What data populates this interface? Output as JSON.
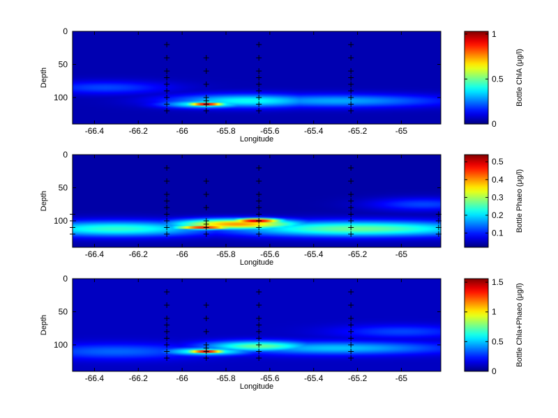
{
  "chart_data": [
    {
      "type": "heatmap",
      "xlabel": "Longitude",
      "ylabel": "Depth",
      "xlim": [
        -66.5,
        -64.82
      ],
      "ylim": [
        140,
        0
      ],
      "x_ticks": [
        -66.4,
        -66.2,
        -66,
        -65.8,
        -65.6,
        -65.4,
        -65.2,
        -65
      ],
      "x_tick_labels": [
        "-66.4",
        "-66.2",
        "-66",
        "-65.8",
        "-65.6",
        "-65.4",
        "-65.2",
        "-65"
      ],
      "y_ticks": [
        0,
        50,
        100
      ],
      "y_tick_labels": [
        "0",
        "50",
        "100"
      ],
      "colorbar": {
        "label": "Bottle ChlA (μg/l)",
        "range": [
          0,
          1.03
        ],
        "ticks": [
          0,
          0.5,
          1
        ],
        "tick_labels": [
          "0",
          "0.5",
          "1"
        ]
      },
      "background_value": 0.05,
      "features": [
        {
          "lon": -65.89,
          "depth": 110,
          "value": 1.0,
          "half_width_lon": 0.09,
          "half_width_depth": 3
        },
        {
          "lon": -65.89,
          "depth": 110,
          "value": 0.45,
          "half_width_lon": 0.2,
          "half_width_depth": 6
        },
        {
          "lon": -65.7,
          "depth": 105,
          "value": 0.4,
          "half_width_lon": 0.35,
          "half_width_depth": 10
        },
        {
          "lon": -65.3,
          "depth": 105,
          "value": 0.3,
          "half_width_lon": 0.5,
          "half_width_depth": 10
        },
        {
          "lon": -66.35,
          "depth": 85,
          "value": 0.2,
          "half_width_lon": 0.3,
          "half_width_depth": 10
        }
      ],
      "stations": [
        {
          "lon": -66.07,
          "depths": [
            20,
            40,
            60,
            70,
            80,
            90,
            100,
            110,
            120
          ]
        },
        {
          "lon": -65.89,
          "depths": [
            40,
            60,
            80,
            100,
            105,
            110,
            120
          ]
        },
        {
          "lon": -65.65,
          "depths": [
            20,
            40,
            60,
            70,
            80,
            90,
            100,
            110,
            120
          ]
        },
        {
          "lon": -65.23,
          "depths": [
            20,
            40,
            60,
            70,
            80,
            90,
            100,
            110,
            120
          ]
        }
      ]
    },
    {
      "type": "heatmap",
      "xlabel": "Longitude",
      "ylabel": "Depth",
      "xlim": [
        -66.5,
        -64.82
      ],
      "ylim": [
        140,
        0
      ],
      "x_ticks": [
        -66.4,
        -66.2,
        -66,
        -65.8,
        -65.6,
        -65.4,
        -65.2,
        -65
      ],
      "x_tick_labels": [
        "-66.4",
        "-66.2",
        "-66",
        "-65.8",
        "-65.6",
        "-65.4",
        "-65.2",
        "-65"
      ],
      "y_ticks": [
        0,
        50,
        100
      ],
      "y_tick_labels": [
        "0",
        "50",
        "100"
      ],
      "colorbar": {
        "label": "Bottle Phaeo (μg/l)",
        "range": [
          0.02,
          0.54
        ],
        "ticks": [
          0.1,
          0.2,
          0.3,
          0.4,
          0.5
        ],
        "tick_labels": [
          "0.1",
          "0.2",
          "0.3",
          "0.4",
          "0.5"
        ]
      },
      "background_value": 0.04,
      "features": [
        {
          "lon": -65.66,
          "depth": 100,
          "value": 0.52,
          "half_width_lon": 0.12,
          "half_width_depth": 4
        },
        {
          "lon": -65.9,
          "depth": 110,
          "value": 0.5,
          "half_width_lon": 0.14,
          "half_width_depth": 3
        },
        {
          "lon": -65.75,
          "depth": 105,
          "value": 0.4,
          "half_width_lon": 0.3,
          "half_width_depth": 8
        },
        {
          "lon": -65.2,
          "depth": 112,
          "value": 0.27,
          "half_width_lon": 0.6,
          "half_width_depth": 12
        },
        {
          "lon": -66.3,
          "depth": 112,
          "value": 0.24,
          "half_width_lon": 0.45,
          "half_width_depth": 12
        },
        {
          "lon": -64.9,
          "depth": 75,
          "value": 0.12,
          "half_width_lon": 0.25,
          "half_width_depth": 10
        }
      ],
      "stations": [
        {
          "lon": -66.07,
          "depths": [
            20,
            40,
            60,
            70,
            80,
            90,
            100,
            110,
            120
          ]
        },
        {
          "lon": -65.89,
          "depths": [
            40,
            60,
            80,
            100,
            105,
            110,
            120
          ]
        },
        {
          "lon": -65.65,
          "depths": [
            20,
            40,
            60,
            70,
            80,
            90,
            100,
            110,
            120
          ]
        },
        {
          "lon": -65.23,
          "depths": [
            20,
            40,
            60,
            70,
            80,
            90,
            100,
            110,
            120
          ]
        },
        {
          "lon": -64.83,
          "depths": [
            90,
            100,
            110,
            120
          ]
        },
        {
          "lon": -66.5,
          "depths": [
            90,
            100,
            110,
            120
          ]
        }
      ]
    },
    {
      "type": "heatmap",
      "xlabel": "Longitude",
      "ylabel": "Depth",
      "xlim": [
        -66.5,
        -64.82
      ],
      "ylim": [
        140,
        0
      ],
      "x_ticks": [
        -66.4,
        -66.2,
        -66,
        -65.8,
        -65.6,
        -65.4,
        -65.2,
        -65
      ],
      "x_tick_labels": [
        "-66.4",
        "-66.2",
        "-66",
        "-65.8",
        "-65.6",
        "-65.4",
        "-65.2",
        "-65"
      ],
      "y_ticks": [
        0,
        50,
        100
      ],
      "y_tick_labels": [
        "0",
        "50",
        "100"
      ],
      "colorbar": {
        "label": "Bottle Chla+Phaeo (μg/l)",
        "range": [
          0,
          1.56
        ],
        "ticks": [
          0,
          0.5,
          1,
          1.5
        ],
        "tick_labels": [
          "0",
          "0.5",
          "1",
          "1.5"
        ]
      },
      "background_value": 0.1,
      "features": [
        {
          "lon": -65.89,
          "depth": 110,
          "value": 1.5,
          "half_width_lon": 0.09,
          "half_width_depth": 3
        },
        {
          "lon": -65.89,
          "depth": 110,
          "value": 0.7,
          "half_width_lon": 0.2,
          "half_width_depth": 6
        },
        {
          "lon": -65.65,
          "depth": 102,
          "value": 0.75,
          "half_width_lon": 0.25,
          "half_width_depth": 8
        },
        {
          "lon": -65.3,
          "depth": 105,
          "value": 0.5,
          "half_width_lon": 0.5,
          "half_width_depth": 10
        },
        {
          "lon": -66.3,
          "depth": 110,
          "value": 0.35,
          "half_width_lon": 0.4,
          "half_width_depth": 12
        },
        {
          "lon": -65.0,
          "depth": 80,
          "value": 0.3,
          "half_width_lon": 0.3,
          "half_width_depth": 10
        }
      ],
      "stations": [
        {
          "lon": -66.07,
          "depths": [
            20,
            40,
            60,
            70,
            80,
            90,
            100,
            110,
            120
          ]
        },
        {
          "lon": -65.89,
          "depths": [
            40,
            60,
            80,
            100,
            105,
            110,
            120
          ]
        },
        {
          "lon": -65.65,
          "depths": [
            20,
            40,
            60,
            70,
            80,
            90,
            100,
            110,
            120
          ]
        },
        {
          "lon": -65.23,
          "depths": [
            20,
            40,
            60,
            70,
            80,
            90,
            100,
            110,
            120
          ]
        }
      ]
    }
  ]
}
